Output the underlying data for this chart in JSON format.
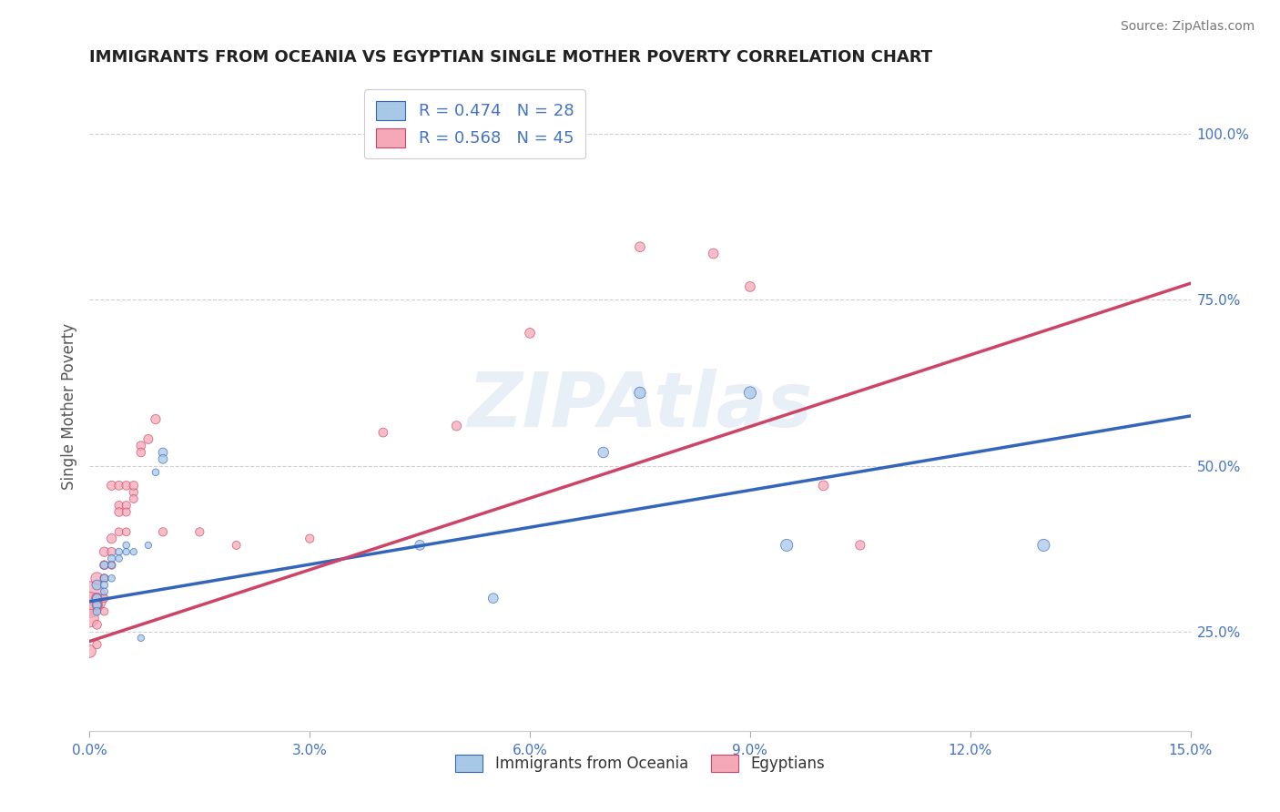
{
  "title": "IMMIGRANTS FROM OCEANIA VS EGYPTIAN SINGLE MOTHER POVERTY CORRELATION CHART",
  "source": "Source: ZipAtlas.com",
  "ylabel": "Single Mother Poverty",
  "watermark": "ZIPAtlas",
  "legend_blue_r": "R = 0.474",
  "legend_blue_n": "N = 28",
  "legend_pink_r": "R = 0.568",
  "legend_pink_n": "N = 45",
  "legend_label_blue": "Immigrants from Oceania",
  "legend_label_pink": "Egyptians",
  "blue_color": "#a8c8e8",
  "pink_color": "#f4a8b8",
  "trendline_blue": "#3366bb",
  "trendline_pink": "#cc4466",
  "background_color": "#ffffff",
  "grid_color": "#bbbbbb",
  "axis_color": "#4472c4",
  "title_color": "#222222",
  "blue_scatter_x": [
    0.001,
    0.001,
    0.001,
    0.001,
    0.002,
    0.002,
    0.002,
    0.002,
    0.003,
    0.003,
    0.003,
    0.004,
    0.004,
    0.005,
    0.005,
    0.006,
    0.007,
    0.008,
    0.009,
    0.01,
    0.01,
    0.045,
    0.055,
    0.07,
    0.075,
    0.09,
    0.095,
    0.13
  ],
  "blue_scatter_y": [
    0.32,
    0.3,
    0.29,
    0.28,
    0.35,
    0.33,
    0.32,
    0.31,
    0.36,
    0.35,
    0.33,
    0.37,
    0.36,
    0.38,
    0.37,
    0.37,
    0.24,
    0.38,
    0.49,
    0.52,
    0.51,
    0.38,
    0.3,
    0.52,
    0.61,
    0.61,
    0.38,
    0.38
  ],
  "blue_scatter_size": [
    60,
    50,
    45,
    40,
    40,
    38,
    35,
    32,
    35,
    32,
    30,
    32,
    30,
    30,
    28,
    28,
    28,
    28,
    30,
    50,
    50,
    60,
    60,
    70,
    80,
    90,
    90,
    90
  ],
  "pink_scatter_x": [
    0.0,
    0.0,
    0.0,
    0.0,
    0.001,
    0.001,
    0.001,
    0.001,
    0.001,
    0.002,
    0.002,
    0.002,
    0.002,
    0.002,
    0.003,
    0.003,
    0.003,
    0.003,
    0.004,
    0.004,
    0.004,
    0.004,
    0.005,
    0.005,
    0.005,
    0.005,
    0.006,
    0.006,
    0.006,
    0.007,
    0.007,
    0.008,
    0.009,
    0.01,
    0.015,
    0.02,
    0.03,
    0.04,
    0.05,
    0.06,
    0.075,
    0.085,
    0.09,
    0.1,
    0.105
  ],
  "pink_scatter_y": [
    0.3,
    0.29,
    0.27,
    0.22,
    0.33,
    0.3,
    0.29,
    0.26,
    0.23,
    0.37,
    0.35,
    0.33,
    0.3,
    0.28,
    0.39,
    0.37,
    0.35,
    0.47,
    0.47,
    0.44,
    0.4,
    0.43,
    0.47,
    0.44,
    0.43,
    0.4,
    0.46,
    0.45,
    0.47,
    0.53,
    0.52,
    0.54,
    0.57,
    0.4,
    0.4,
    0.38,
    0.39,
    0.55,
    0.56,
    0.7,
    0.83,
    0.82,
    0.77,
    0.47,
    0.38
  ],
  "pink_scatter_size": [
    700,
    400,
    200,
    100,
    90,
    70,
    60,
    50,
    45,
    55,
    50,
    45,
    40,
    38,
    55,
    48,
    42,
    52,
    50,
    46,
    42,
    48,
    48,
    44,
    42,
    40,
    45,
    42,
    48,
    50,
    48,
    52,
    55,
    45,
    45,
    42,
    45,
    50,
    55,
    60,
    60,
    60,
    60,
    60,
    55
  ],
  "xlim": [
    0.0,
    0.15
  ],
  "ylim": [
    0.1,
    1.08
  ],
  "blue_line_x": [
    0.0,
    0.15
  ],
  "blue_line_y": [
    0.295,
    0.575
  ],
  "pink_line_x": [
    0.0,
    0.15
  ],
  "pink_line_y": [
    0.235,
    0.775
  ],
  "x_ticks": [
    0.0,
    0.03,
    0.06,
    0.09,
    0.12,
    0.15
  ],
  "x_tick_labels": [
    "0.0%",
    "3.0%",
    "6.0%",
    "9.0%",
    "12.0%",
    "15.0%"
  ],
  "y_ticks": [
    0.25,
    0.5,
    0.75,
    1.0
  ],
  "y_tick_labels": [
    "25.0%",
    "50.0%",
    "75.0%",
    "100.0%"
  ]
}
